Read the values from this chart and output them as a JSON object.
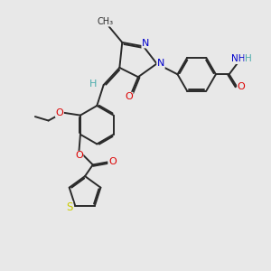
{
  "background_color": "#e8e8e8",
  "bond_color": "#2a2a2a",
  "bond_lw": 1.4,
  "atom_colors": {
    "N": "#0000cc",
    "O": "#dd0000",
    "S": "#cccc00",
    "H_teal": "#4aabab",
    "C": "#2a2a2a"
  },
  "xlim": [
    0,
    10
  ],
  "ylim": [
    0,
    10
  ]
}
